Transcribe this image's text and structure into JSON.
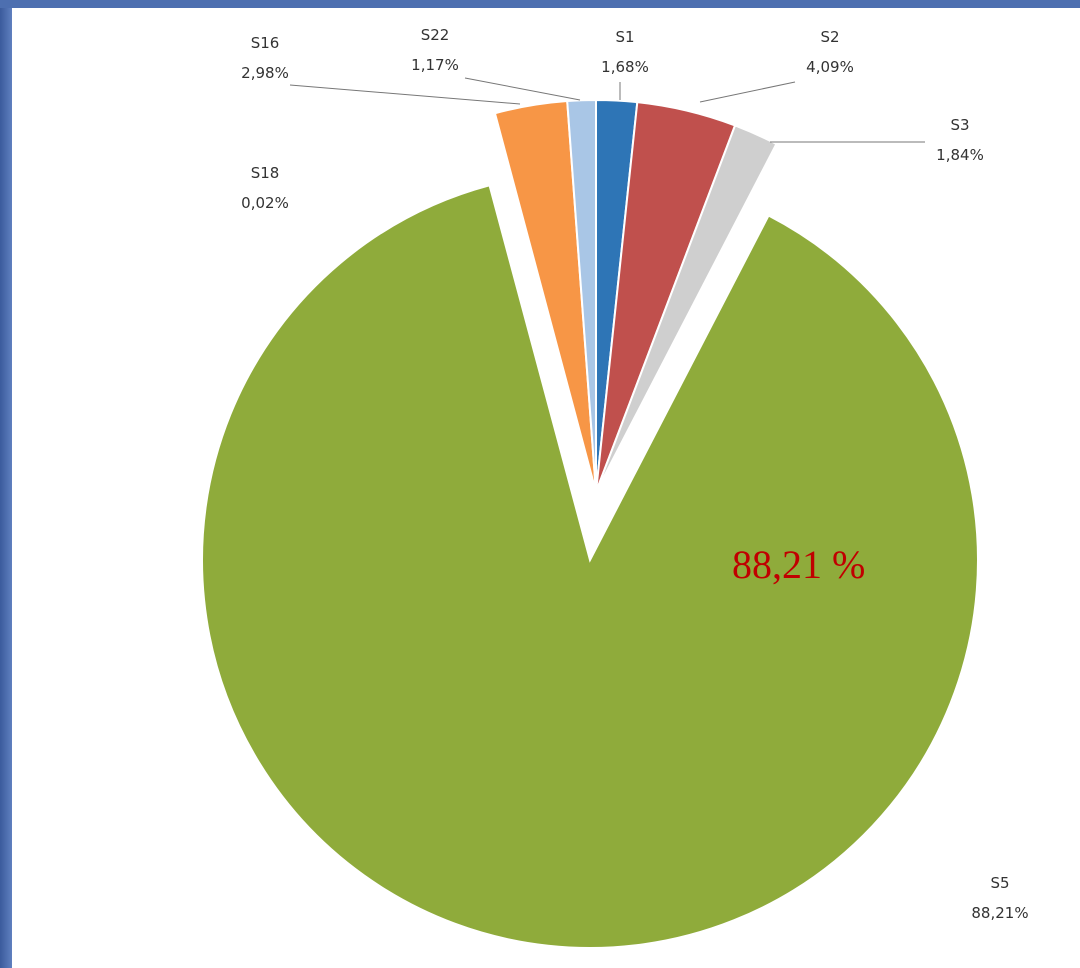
{
  "chart_data": {
    "type": "pie",
    "categories": [
      "S1",
      "S2",
      "S3",
      "S5",
      "S18",
      "S16",
      "S22"
    ],
    "values": [
      1.68,
      4.09,
      1.84,
      88.21,
      0.02,
      2.98,
      1.17
    ],
    "value_labels": [
      "1,68%",
      "4,09%",
      "1,84%",
      "88,21%",
      "0,02%",
      "2,98%",
      "1,17%"
    ],
    "colors": [
      "#2e75b6",
      "#c0504d",
      "#cfcfcf",
      "#8fab3b",
      "#7f7f7f",
      "#f79646",
      "#a9c6e6"
    ],
    "annotation": "88,21 %"
  }
}
